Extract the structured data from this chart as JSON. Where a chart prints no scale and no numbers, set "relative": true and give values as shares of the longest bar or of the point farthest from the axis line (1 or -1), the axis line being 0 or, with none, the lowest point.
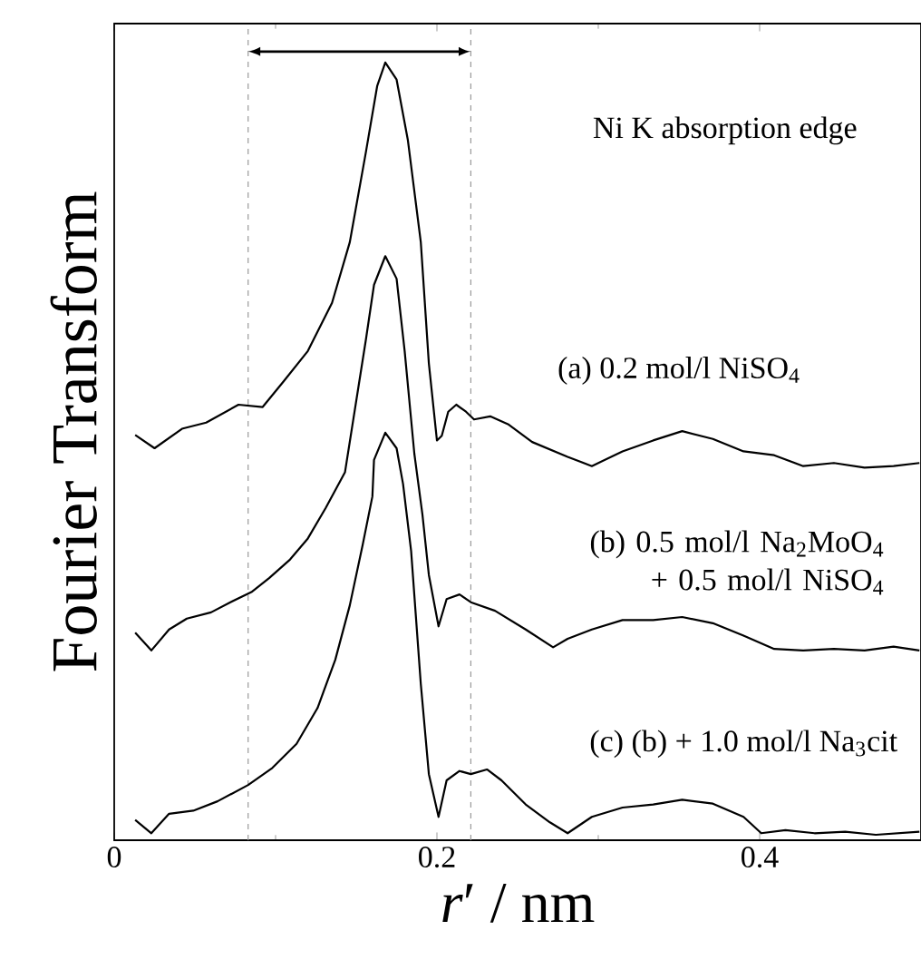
{
  "chart_data": {
    "type": "line",
    "relative": true,
    "xlabel": "*r*′ / nm",
    "ylabel": "Fourier Transform",
    "xlim": [
      0,
      0.5
    ],
    "xticks": [
      0,
      0.2,
      0.4
    ],
    "annotations": [
      "Ni K absorption edge"
    ],
    "ref_lines": [
      {
        "axis": "x",
        "value": 0.083,
        "color": "#999999",
        "line_style": "dashed"
      },
      {
        "axis": "x",
        "value": 0.221,
        "color": "#999999",
        "line_style": "dashed"
      }
    ],
    "series": [
      {
        "name": "(a) 0.2 mol/l NiSO$_{4}$",
        "color": "#000000",
        "x": [
          0.013,
          0.025,
          0.042,
          0.057,
          0.077,
          0.092,
          0.105,
          0.12,
          0.135,
          0.146,
          0.156,
          0.163,
          0.168,
          0.175,
          0.182,
          0.19,
          0.195,
          0.2,
          0.203,
          0.207,
          0.212,
          0.218,
          0.223,
          0.233,
          0.244,
          0.259,
          0.281,
          0.296,
          0.315,
          0.334,
          0.352,
          0.371,
          0.39,
          0.409,
          0.427,
          0.446,
          0.465,
          0.483,
          0.499
        ],
        "values": [
          0.521,
          0.504,
          0.529,
          0.537,
          0.56,
          0.557,
          0.59,
          0.629,
          0.691,
          0.769,
          0.885,
          0.97,
          1.0,
          0.978,
          0.9,
          0.769,
          0.613,
          0.514,
          0.52,
          0.551,
          0.56,
          0.551,
          0.541,
          0.545,
          0.535,
          0.512,
          0.493,
          0.481,
          0.5,
          0.514,
          0.526,
          0.516,
          0.5,
          0.495,
          0.481,
          0.485,
          0.479,
          0.481,
          0.485
        ]
      },
      {
        "name": "(b) 0.5 mol/l Na$_{2}$MoO$_{4}$ + 0.5 mol/l NiSO$_{4}$",
        "color": "#000000",
        "x": [
          0.013,
          0.023,
          0.034,
          0.045,
          0.06,
          0.072,
          0.085,
          0.096,
          0.109,
          0.12,
          0.131,
          0.143,
          0.156,
          0.161,
          0.168,
          0.175,
          0.18,
          0.186,
          0.191,
          0.195,
          0.201,
          0.206,
          0.214,
          0.221,
          0.236,
          0.255,
          0.272,
          0.281,
          0.296,
          0.315,
          0.334,
          0.352,
          0.371,
          0.39,
          0.409,
          0.427,
          0.446,
          0.465,
          0.483,
          0.499
        ],
        "values": [
          0.267,
          0.244,
          0.271,
          0.285,
          0.293,
          0.306,
          0.319,
          0.337,
          0.361,
          0.388,
          0.427,
          0.473,
          0.644,
          0.714,
          0.751,
          0.722,
          0.629,
          0.497,
          0.419,
          0.341,
          0.275,
          0.31,
          0.316,
          0.306,
          0.295,
          0.271,
          0.248,
          0.259,
          0.271,
          0.283,
          0.283,
          0.287,
          0.279,
          0.263,
          0.246,
          0.244,
          0.246,
          0.244,
          0.249,
          0.244
        ]
      },
      {
        "name": "(c) (b) + 1.0 mol/l Na$_{3}$cit",
        "color": "#000000",
        "x": [
          0.013,
          0.023,
          0.034,
          0.049,
          0.064,
          0.083,
          0.098,
          0.113,
          0.126,
          0.137,
          0.146,
          0.154,
          0.16,
          0.161,
          0.168,
          0.175,
          0.179,
          0.184,
          0.19,
          0.195,
          0.201,
          0.206,
          0.214,
          0.221,
          0.231,
          0.24,
          0.255,
          0.27,
          0.281,
          0.296,
          0.315,
          0.334,
          0.352,
          0.371,
          0.39,
          0.401,
          0.416,
          0.434,
          0.453,
          0.472,
          0.499
        ],
        "values": [
          0.026,
          0.009,
          0.034,
          0.038,
          0.05,
          0.071,
          0.093,
          0.124,
          0.17,
          0.232,
          0.302,
          0.38,
          0.442,
          0.489,
          0.524,
          0.504,
          0.458,
          0.372,
          0.201,
          0.085,
          0.03,
          0.077,
          0.089,
          0.085,
          0.091,
          0.077,
          0.046,
          0.023,
          0.009,
          0.03,
          0.042,
          0.046,
          0.052,
          0.047,
          0.03,
          0.009,
          0.013,
          0.009,
          0.011,
          0.007,
          0.011
        ]
      }
    ]
  }
}
